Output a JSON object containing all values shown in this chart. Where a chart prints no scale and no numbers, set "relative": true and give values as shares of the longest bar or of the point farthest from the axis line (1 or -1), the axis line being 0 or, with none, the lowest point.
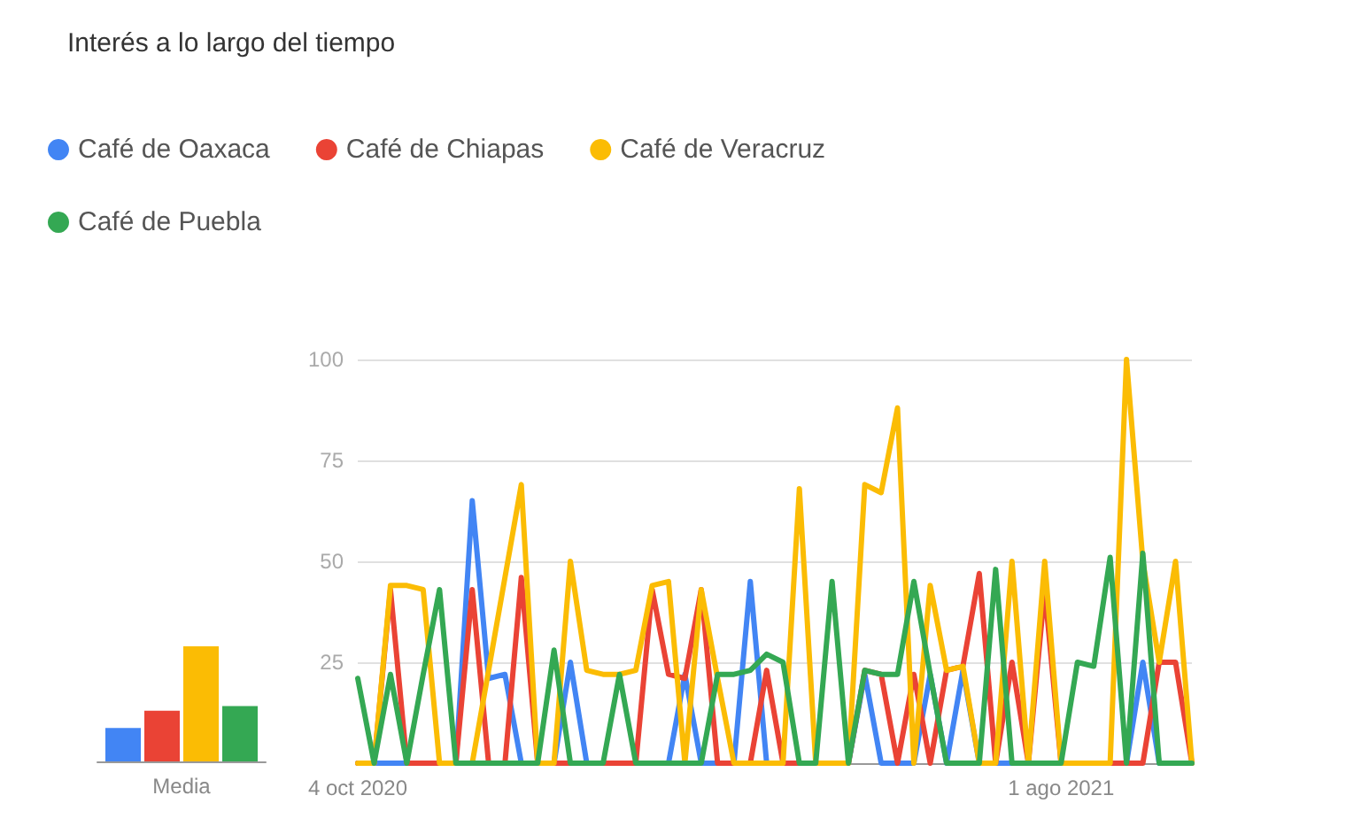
{
  "chart_data": [
    {
      "type": "line",
      "title": "Interés a lo largo del tiempo",
      "categories": [
        "4 oct 2020",
        null,
        null,
        null,
        null,
        null,
        null,
        null,
        null,
        null,
        null,
        null,
        null,
        null,
        null,
        null,
        null,
        null,
        null,
        null,
        null,
        null,
        null,
        null,
        null,
        null,
        null,
        null,
        null,
        null,
        null,
        null,
        null,
        null,
        null,
        null,
        null,
        null,
        null,
        null,
        null,
        null,
        null,
        "1 ago 2021",
        null,
        null,
        null,
        null,
        null,
        null,
        null,
        null
      ],
      "series": [
        {
          "name": "Café de Oaxaca",
          "color": "#4285f4",
          "values": [
            0,
            0,
            0,
            0,
            0,
            0,
            0,
            65,
            21,
            22,
            0,
            0,
            0,
            25,
            0,
            0,
            0,
            0,
            0,
            0,
            22,
            0,
            0,
            0,
            45,
            0,
            0,
            0,
            0,
            0,
            0,
            22,
            0,
            0,
            0,
            22,
            0,
            23,
            0,
            0,
            0,
            0,
            0,
            0,
            0,
            0,
            0,
            0,
            25,
            0,
            0,
            0
          ]
        },
        {
          "name": "Café de Chiapas",
          "color": "#ea4335",
          "values": [
            0,
            0,
            43,
            0,
            0,
            0,
            0,
            43,
            0,
            0,
            46,
            0,
            0,
            0,
            0,
            0,
            0,
            0,
            43,
            22,
            21,
            43,
            0,
            0,
            0,
            23,
            0,
            0,
            0,
            0,
            0,
            23,
            22,
            0,
            22,
            0,
            23,
            24,
            47,
            0,
            25,
            0,
            43,
            0,
            0,
            0,
            0,
            0,
            0,
            25,
            25,
            0
          ]
        },
        {
          "name": "Café de Veracruz",
          "color": "#fbbc04",
          "values": [
            0,
            0,
            44,
            44,
            43,
            0,
            0,
            0,
            23,
            46,
            69,
            0,
            0,
            50,
            23,
            22,
            22,
            23,
            44,
            45,
            0,
            43,
            21,
            0,
            0,
            0,
            0,
            68,
            0,
            0,
            0,
            69,
            67,
            88,
            0,
            44,
            23,
            24,
            0,
            0,
            50,
            0,
            50,
            0,
            0,
            0,
            0,
            100,
            50,
            25,
            50,
            0
          ]
        },
        {
          "name": "Café de Puebla",
          "color": "#34a853",
          "values": [
            21,
            0,
            22,
            0,
            22,
            43,
            0,
            0,
            0,
            0,
            0,
            0,
            28,
            0,
            0,
            0,
            22,
            0,
            0,
            0,
            0,
            0,
            22,
            22,
            23,
            27,
            25,
            0,
            0,
            45,
            0,
            23,
            22,
            22,
            45,
            22,
            0,
            0,
            0,
            48,
            0,
            0,
            0,
            0,
            25,
            24,
            51,
            0,
            52,
            0,
            0,
            0
          ]
        }
      ],
      "ylim": [
        0,
        100
      ],
      "yticks": [
        25,
        50,
        75,
        100
      ],
      "grid": "y",
      "legend": "top left",
      "marker": "none"
    },
    {
      "type": "bar",
      "categories": [
        "Media"
      ],
      "relative": true,
      "series": [
        {
          "color": "#4285f4",
          "values": [
            0.29
          ]
        },
        {
          "color": "#ea4335",
          "values": [
            0.44
          ]
        },
        {
          "color": "#fbbc04",
          "values": [
            1
          ]
        },
        {
          "color": "#34a853",
          "values": [
            0.48
          ]
        }
      ]
    }
  ]
}
